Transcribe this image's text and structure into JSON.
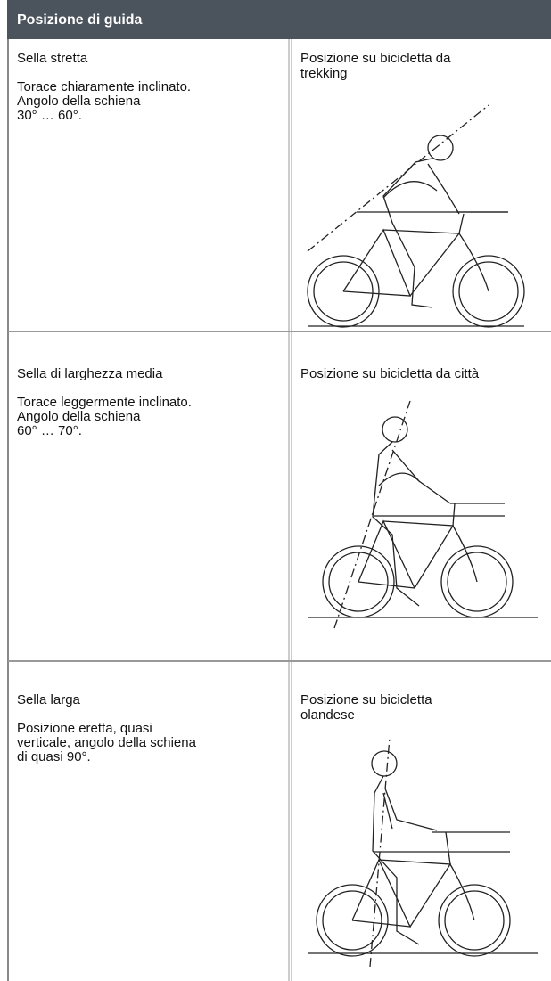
{
  "header": {
    "title": "Posizione di guida"
  },
  "rows": [
    {
      "saddle": "Sella stretta",
      "description": [
        "Torace chiaramente inclinato.",
        "Angolo della schiena",
        "30° … 60°."
      ],
      "position": [
        "Posizione su bicicletta da",
        "trekking"
      ]
    },
    {
      "saddle": "Sella di larghezza media",
      "description": [
        "Torace leggermente inclinato.",
        "Angolo della schiena",
        "60° … 70°."
      ],
      "position": [
        "Posizione su bicicletta da città"
      ]
    },
    {
      "saddle": "Sella larga",
      "description": [
        "Posizione eretta, quasi",
        "verticale, angolo della schiena",
        "di quasi 90°."
      ],
      "position": [
        "Posizione su bicicletta",
        "olandese"
      ]
    }
  ]
}
